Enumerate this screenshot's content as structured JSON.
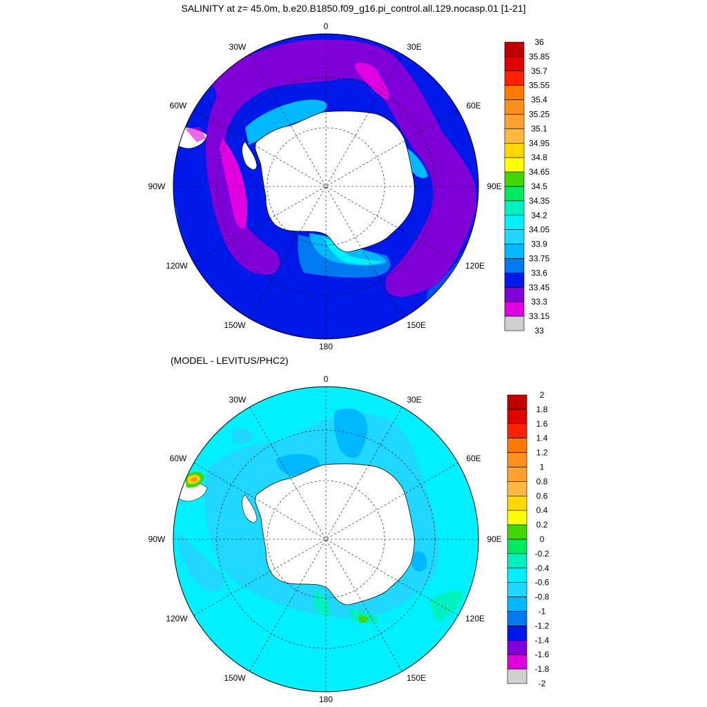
{
  "top_panel": {
    "title": "SALINITY at z=  45.0m, b.e20.B1850.f09_g16.pi_control.all.129.nocasp.01 [1-21]",
    "lon_labels": [
      "0",
      "30E",
      "60E",
      "90E",
      "120E",
      "150E",
      "180",
      "150W",
      "120W",
      "90W",
      "60W",
      "30W"
    ],
    "colorbar": {
      "labels": [
        "36",
        "35.85",
        "35.7",
        "35.55",
        "35.4",
        "35.25",
        "35.1",
        "34.95",
        "34.8",
        "34.65",
        "34.5",
        "34.35",
        "34.2",
        "34.05",
        "33.9",
        "33.75",
        "33.6",
        "33.45",
        "33.3",
        "33.15",
        "33"
      ],
      "colors": [
        "#c00000",
        "#e00000",
        "#ff2000",
        "#ff7800",
        "#ff9020",
        "#ffa030",
        "#ffb840",
        "#ffd800",
        "#ffff00",
        "#40d800",
        "#00e860",
        "#00f0c0",
        "#00f0ff",
        "#20d8ff",
        "#00b8ff",
        "#0078f0",
        "#0018e8",
        "#8000d8",
        "#e000e0",
        "#d0d0d0",
        "#707070"
      ]
    }
  },
  "bottom_panel": {
    "title": "(MODEL - LEVITUS/PHC2)",
    "lon_labels": [
      "0",
      "30E",
      "60E",
      "90E",
      "120E",
      "150E",
      "180",
      "150W",
      "120W",
      "90W",
      "60W",
      "30W"
    ],
    "colorbar": {
      "labels": [
        "2",
        "1.8",
        "1.6",
        "1.4",
        "1.2",
        "1",
        "0.8",
        "0.6",
        "0.4",
        "0.2",
        "0",
        "-0.2",
        "-0.4",
        "-0.6",
        "-0.8",
        "-1",
        "-1.2",
        "-1.4",
        "-1.6",
        "-1.8",
        "-2"
      ],
      "colors": [
        "#c00000",
        "#e00000",
        "#ff2000",
        "#ff7800",
        "#ff9020",
        "#ffa030",
        "#ffb840",
        "#ffd800",
        "#ffff00",
        "#40d800",
        "#00e860",
        "#00f0c0",
        "#00f0ff",
        "#20d8ff",
        "#00b8ff",
        "#0078f0",
        "#0018e8",
        "#8000d8",
        "#e000e0",
        "#d0d0d0",
        "#707070"
      ]
    }
  }
}
